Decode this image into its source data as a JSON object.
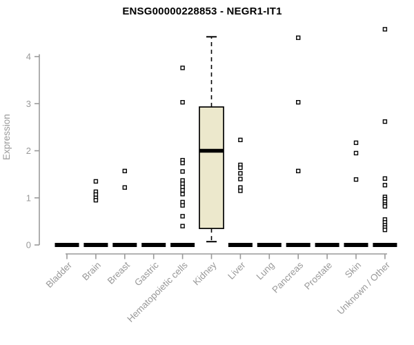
{
  "chart_data": {
    "type": "boxplot",
    "title": "ENSG00000228853 - NEGR1-IT1",
    "ylabel": "Expression",
    "ylim": [
      0,
      4.65
    ],
    "yticks": [
      0,
      1,
      2,
      3,
      4
    ],
    "grid": false,
    "legend": "none",
    "marker": "open-square",
    "colors": {
      "box_fill": "#ECE8CC",
      "box_border": "#000000",
      "median": "#000000",
      "zero_bar": "#000000",
      "axis": "#999999",
      "title": "#000000"
    },
    "categories": [
      "Bladder",
      "Brain",
      "Breast",
      "Gastric",
      "Hematopoietic cells",
      "Kidney",
      "Liver",
      "Lung",
      "Pancreas",
      "Prostate",
      "Skin",
      "Unknown / Other"
    ],
    "boxes": [
      {
        "category": "Bladder",
        "q1": 0,
        "median": 0,
        "q3": 0,
        "whisker_low": 0,
        "whisker_high": 0,
        "outliers": []
      },
      {
        "category": "Brain",
        "q1": 0,
        "median": 0,
        "q3": 0,
        "whisker_low": 0,
        "whisker_high": 0,
        "outliers": [
          1.35,
          1.13,
          1.07,
          1.0,
          0.95
        ]
      },
      {
        "category": "Breast",
        "q1": 0,
        "median": 0,
        "q3": 0,
        "whisker_low": 0,
        "whisker_high": 0,
        "outliers": [
          1.57,
          1.22
        ]
      },
      {
        "category": "Gastric",
        "q1": 0,
        "median": 0,
        "q3": 0,
        "whisker_low": 0,
        "whisker_high": 0,
        "outliers": []
      },
      {
        "category": "Hematopoietic cells",
        "q1": 0,
        "median": 0,
        "q3": 0,
        "whisker_low": 0,
        "whisker_high": 0,
        "outliers": [
          3.76,
          3.03,
          1.8,
          1.74,
          1.56,
          1.37,
          1.3,
          1.23,
          1.16,
          1.08,
          0.91,
          0.84,
          0.61,
          0.4
        ]
      },
      {
        "category": "Kidney",
        "q1": 0.35,
        "median": 2.0,
        "q3": 2.93,
        "whisker_low": 0.07,
        "whisker_high": 4.42,
        "outliers": []
      },
      {
        "category": "Liver",
        "q1": 0,
        "median": 0,
        "q3": 0,
        "whisker_low": 0,
        "whisker_high": 0,
        "outliers": [
          2.23,
          1.7,
          1.64,
          1.52,
          1.4,
          1.22,
          1.15
        ]
      },
      {
        "category": "Lung",
        "q1": 0,
        "median": 0,
        "q3": 0,
        "whisker_low": 0,
        "whisker_high": 0,
        "outliers": []
      },
      {
        "category": "Pancreas",
        "q1": 0,
        "median": 0,
        "q3": 0,
        "whisker_low": 0,
        "whisker_high": 0,
        "outliers": [
          4.4,
          3.03,
          1.57
        ]
      },
      {
        "category": "Prostate",
        "q1": 0,
        "median": 0,
        "q3": 0,
        "whisker_low": 0,
        "whisker_high": 0,
        "outliers": []
      },
      {
        "category": "Skin",
        "q1": 0,
        "median": 0,
        "q3": 0,
        "whisker_low": 0,
        "whisker_high": 0,
        "outliers": [
          2.17,
          1.95,
          1.39
        ]
      },
      {
        "category": "Unknown / Other",
        "q1": 0,
        "median": 0,
        "q3": 0,
        "whisker_low": 0,
        "whisker_high": 0,
        "outliers": [
          4.58,
          2.62,
          1.41,
          1.27,
          1.02,
          0.97,
          0.92,
          0.86,
          0.82,
          0.54,
          0.48,
          0.42,
          0.37,
          0.32
        ]
      }
    ]
  }
}
